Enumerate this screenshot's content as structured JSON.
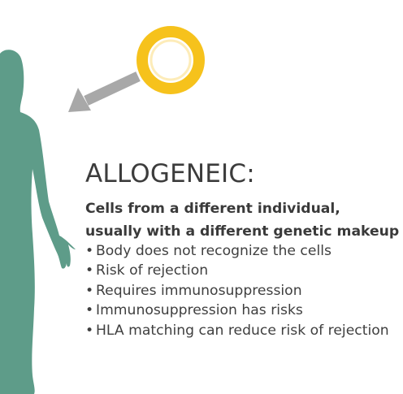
{
  "heading": "ALLOGENEIC:",
  "subheading": {
    "line1": "Cells from a different individual,",
    "line2": "usually with a different genetic makeup"
  },
  "bullet_char": "•",
  "bullets": [
    "Body does not recognize the cells",
    "Risk of rejection",
    "Requires immunosuppression",
    "Immunosuppression has risks",
    "HLA matching can reduce risk of rejection"
  ],
  "colors": {
    "figure": "#5e9c89",
    "cell": "#f6c21c",
    "arrow": "#a8a8a8",
    "text": "#3f3f3f"
  },
  "icons": {
    "figure": "human-body-silhouette-icon",
    "cell": "donor-cell-icon",
    "arrow": "arrow-icon"
  }
}
